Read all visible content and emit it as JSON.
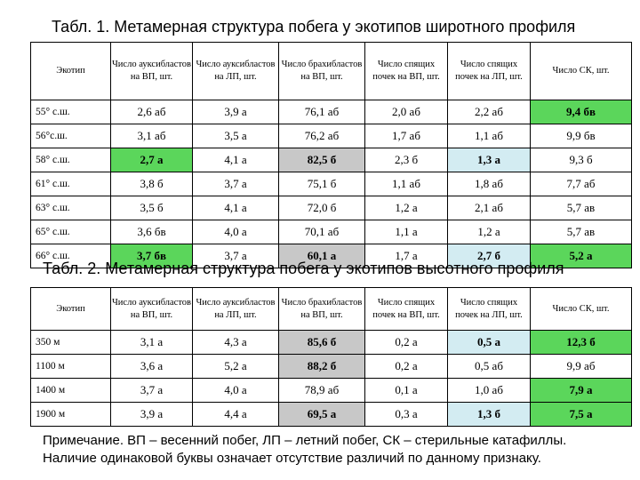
{
  "table1": {
    "title": "Табл. 1. Метамерная структура побега у экотипов широтного профиля",
    "headers": [
      "Экотип",
      "Число ауксибластов на ВП, шт.",
      "Число ауксибластов на ЛП, шт.",
      "Число брахибластов на ВП, шт.",
      "Число спящих почек на ВП, шт.",
      "Число спящих почек на ЛП, шт.",
      "Число СК, шт."
    ],
    "rows": [
      {
        "label": "55° с.ш.",
        "cells": [
          "2,6 аб",
          "3,9 а",
          "76,1 аб",
          "2,0 аб",
          "2,2 аб",
          "9,4 бв"
        ]
      },
      {
        "label": "56°с.ш.",
        "cells": [
          "3,1 аб",
          "3,5 а",
          "76,2 аб",
          "1,7 аб",
          "1,1 аб",
          "9,9 бв"
        ]
      },
      {
        "label": "58° с.ш.",
        "cells": [
          "2,7 а",
          "4,1 а",
          "82,5 б",
          "2,3 б",
          "1,3 а",
          "9,3 б"
        ]
      },
      {
        "label": "61° с.ш.",
        "cells": [
          "3,8 б",
          "3,7 а",
          "75,1 б",
          "1,1 аб",
          "1,8 аб",
          "7,7 аб"
        ]
      },
      {
        "label": "63° с.ш.",
        "cells": [
          "3,5 б",
          "4,1 а",
          "72,0 б",
          "1,2 а",
          "2,1 аб",
          "5,7 ав"
        ]
      },
      {
        "label": "65° с.ш.",
        "cells": [
          "3,6 бв",
          "4,0 а",
          "70,1 аб",
          "1,1 а",
          "1,2 а",
          "5,7 ав"
        ]
      },
      {
        "label": "66° с.ш.",
        "cells": [
          "3,7 бв",
          "3,7 а",
          "60,1 а",
          "1,7 а",
          "2,7 б",
          "5,2 а"
        ]
      }
    ]
  },
  "table2": {
    "title": "Табл. 2. Метамерная структура побега у экотипов высотного профиля",
    "headers": [
      "Экотип",
      "Число ауксибластов на ВП, шт.",
      "Число ауксибластов на ЛП, шт.",
      "Число брахибластов на ВП, шт.",
      "Число спящих почек на ВП, шт.",
      "Число спящих почек на ЛП, шт.",
      "Число СК, шт."
    ],
    "rows": [
      {
        "label": "350 м",
        "cells": [
          "3,1 а",
          "4,3 а",
          "85,6 б",
          "0,2 а",
          "0,5 а",
          "12,3 б"
        ]
      },
      {
        "label": "1100 м",
        "cells": [
          "3,6 а",
          "5,2 а",
          "88,2 б",
          "0,2 а",
          "0,5 аб",
          "9,9 аб"
        ]
      },
      {
        "label": "1400 м",
        "cells": [
          "3,7 а",
          "4,0 а",
          "78,9 аб",
          "0,1 а",
          "1,0 аб",
          "7,9 а"
        ]
      },
      {
        "label": "1900 м",
        "cells": [
          "3,9 а",
          "4,4 а",
          "69,5 а",
          "0,3 а",
          "1,3 б",
          "7,5 а"
        ]
      }
    ]
  },
  "note": {
    "line1": "Примечание. ВП – весенний побег, ЛП – летний побег, СК – стерильные катафиллы.",
    "line2": "Наличие одинаковой буквы означает отсутствие различий по данному признаку."
  },
  "highlight_colors": {
    "green": "#5bd65b",
    "gray": "#c8c8c8",
    "blue": "#d3ecf2"
  }
}
